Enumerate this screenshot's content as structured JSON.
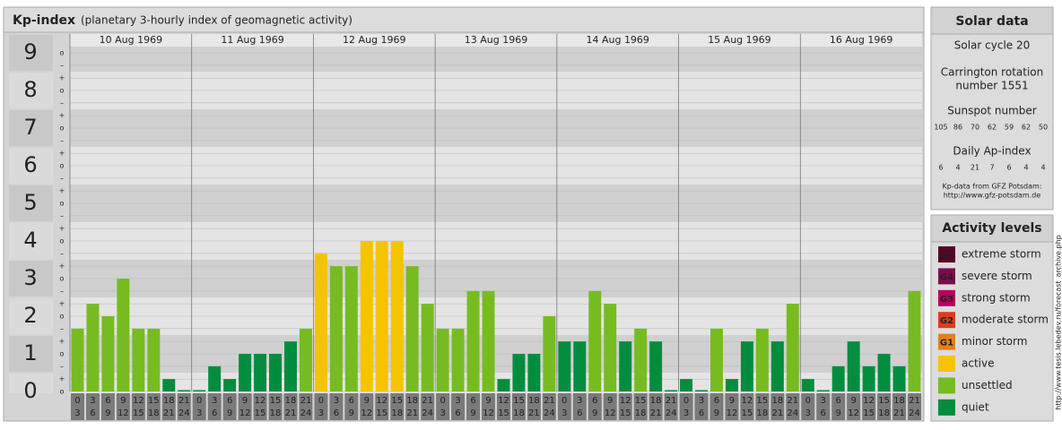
{
  "chart_data": {
    "type": "bar",
    "title": "Kp-index",
    "subtitle": "(planetary 3-hourly index of geomagnetic activity)",
    "days": [
      "10 Aug 1969",
      "11 Aug 1969",
      "12 Aug 1969",
      "13 Aug 1969",
      "14 Aug 1969",
      "15 Aug 1969",
      "16 Aug 1969"
    ],
    "hour_start": [
      "0",
      "3",
      "6",
      "9",
      "12",
      "15",
      "18",
      "21"
    ],
    "hour_end": [
      "3",
      "6",
      "9",
      "12",
      "15",
      "18",
      "21",
      "24"
    ],
    "values": [
      1.67,
      2.33,
      2,
      3,
      1.67,
      1.67,
      0.33,
      0,
      0,
      0.67,
      0.33,
      1,
      1,
      1,
      1.33,
      1.67,
      3.67,
      3.33,
      3.33,
      4,
      4,
      4,
      3.33,
      2.33,
      1.67,
      1.67,
      2.67,
      2.67,
      0.33,
      1,
      1,
      2,
      1.33,
      1.33,
      2.67,
      2.33,
      1.33,
      1.67,
      1.33,
      0,
      0.33,
      0,
      1.67,
      0.33,
      1.33,
      1.67,
      1.33,
      2.33,
      0.33,
      0,
      0.67,
      1.33,
      0.67,
      1,
      0.67,
      2.67
    ],
    "colors": [
      "#76bc21",
      "#76bc21",
      "#76bc21",
      "#76bc21",
      "#76bc21",
      "#76bc21",
      "#008d3e",
      "#008d3e",
      "#008d3e",
      "#008d3e",
      "#008d3e",
      "#008d3e",
      "#008d3e",
      "#008d3e",
      "#008d3e",
      "#76bc21",
      "#f5c400",
      "#76bc21",
      "#76bc21",
      "#f5c400",
      "#f5c400",
      "#f5c400",
      "#76bc21",
      "#76bc21",
      "#76bc21",
      "#76bc21",
      "#76bc21",
      "#76bc21",
      "#008d3e",
      "#008d3e",
      "#008d3e",
      "#76bc21",
      "#008d3e",
      "#008d3e",
      "#76bc21",
      "#76bc21",
      "#008d3e",
      "#76bc21",
      "#008d3e",
      "#008d3e",
      "#008d3e",
      "#008d3e",
      "#76bc21",
      "#008d3e",
      "#008d3e",
      "#76bc21",
      "#008d3e",
      "#76bc21",
      "#008d3e",
      "#008d3e",
      "#008d3e",
      "#008d3e",
      "#008d3e",
      "#008d3e",
      "#008d3e",
      "#76bc21"
    ],
    "ylim": [
      0,
      9.33
    ],
    "yticks": [
      0,
      1,
      2,
      3,
      4,
      5,
      6,
      7,
      8,
      9
    ],
    "yminor_ticks": [
      {
        "value": 0,
        "label": "o"
      },
      {
        "value": 0.33,
        "label": "+"
      },
      {
        "value": 0.67,
        "label": "–"
      },
      {
        "value": 1,
        "label": "o"
      },
      {
        "value": 1.33,
        "label": "+"
      },
      {
        "value": 1.67,
        "label": "–"
      },
      {
        "value": 2,
        "label": "o"
      },
      {
        "value": 2.33,
        "label": "+"
      },
      {
        "value": 2.67,
        "label": "–"
      },
      {
        "value": 3,
        "label": "o"
      },
      {
        "value": 3.33,
        "label": "+"
      },
      {
        "value": 3.67,
        "label": "–"
      },
      {
        "value": 4,
        "label": "o"
      },
      {
        "value": 4.33,
        "label": "+"
      },
      {
        "value": 4.67,
        "label": "–"
      },
      {
        "value": 5,
        "label": "o"
      },
      {
        "value": 5.33,
        "label": "+"
      },
      {
        "value": 5.67,
        "label": "–"
      },
      {
        "value": 6,
        "label": "o"
      },
      {
        "value": 6.33,
        "label": "+"
      },
      {
        "value": 6.67,
        "label": "–"
      },
      {
        "value": 7,
        "label": "o"
      },
      {
        "value": 7.33,
        "label": "+"
      },
      {
        "value": 7.67,
        "label": "–"
      },
      {
        "value": 8,
        "label": "o"
      },
      {
        "value": 8.33,
        "label": "+"
      },
      {
        "value": 8.67,
        "label": "–"
      },
      {
        "value": 9,
        "label": "o"
      }
    ],
    "grid": true
  },
  "solar": {
    "title": "Solar data",
    "cycle": "Solar cycle 20",
    "carrington": [
      "Carrington rotation",
      "number 1551"
    ],
    "sunspot_title": "Sunspot number",
    "sunspots": [
      "105",
      "86",
      "70",
      "62",
      "59",
      "62",
      "50"
    ],
    "ap_title": "Daily Ap-index",
    "ap": [
      "6",
      "4",
      "21",
      "7",
      "6",
      "4",
      "4"
    ],
    "source": [
      "Kp-data from GFZ Potsdam:",
      "http://www.gfz-potsdam.de"
    ]
  },
  "legend": {
    "title": "Activity levels",
    "items": [
      {
        "badge": "G5",
        "label": "extreme storm",
        "color": "#5a0028"
      },
      {
        "badge": "G4",
        "label": "severe storm",
        "color": "#7d0a4b"
      },
      {
        "badge": "G3",
        "label": "strong storm",
        "color": "#b4005f"
      },
      {
        "badge": "G2",
        "label": "moderate storm",
        "color": "#d6401a"
      },
      {
        "badge": "G1",
        "label": "minor storm",
        "color": "#e2801a"
      },
      {
        "label": "active",
        "color": "#f5c400"
      },
      {
        "label": "unsettled",
        "color": "#76bc21"
      },
      {
        "label": "quiet",
        "color": "#008d3e"
      }
    ]
  },
  "watermark": "http://www.tesis.lebedev.ru/forecast_archive.php"
}
